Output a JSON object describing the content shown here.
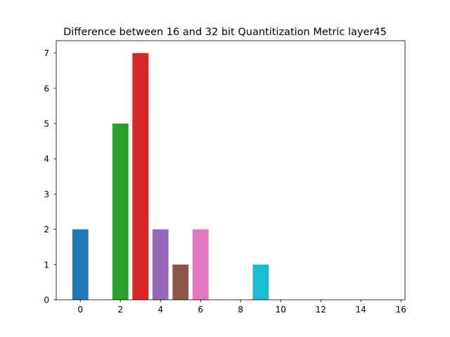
{
  "chart_data": {
    "type": "bar",
    "title": "Difference between 16 and 32 bit Quantitization Metric layer45",
    "xlabel": "",
    "ylabel": "",
    "x": [
      0,
      1,
      2,
      3,
      4,
      5,
      6,
      7,
      8,
      9,
      10,
      11,
      12,
      13,
      14,
      15
    ],
    "values": [
      2,
      0,
      5,
      7,
      2,
      1,
      2,
      0,
      0,
      1,
      0,
      0,
      0,
      0,
      0,
      0
    ],
    "colors": [
      "#1f77b4",
      "#ff7f0e",
      "#2ca02c",
      "#d62728",
      "#9467bd",
      "#8c564b",
      "#e377c2",
      "#7f7f7f",
      "#bcbd22",
      "#17becf",
      "#1f77b4",
      "#ff7f0e",
      "#2ca02c",
      "#d62728",
      "#9467bd",
      "#8c564b"
    ],
    "xlim": [
      -1.2,
      16.2
    ],
    "ylim": [
      0,
      7.35
    ],
    "xticks": [
      0,
      2,
      4,
      6,
      8,
      10,
      12,
      14,
      16
    ],
    "xtick_labels": [
      "0",
      "2",
      "4",
      "6",
      "8",
      "10",
      "12",
      "14",
      "16"
    ],
    "yticks": [
      0,
      1,
      2,
      3,
      4,
      5,
      6,
      7
    ],
    "ytick_labels": [
      "0",
      "1",
      "2",
      "3",
      "4",
      "5",
      "6",
      "7"
    ],
    "bar_width": 0.8,
    "grid": false,
    "legend": "none"
  }
}
